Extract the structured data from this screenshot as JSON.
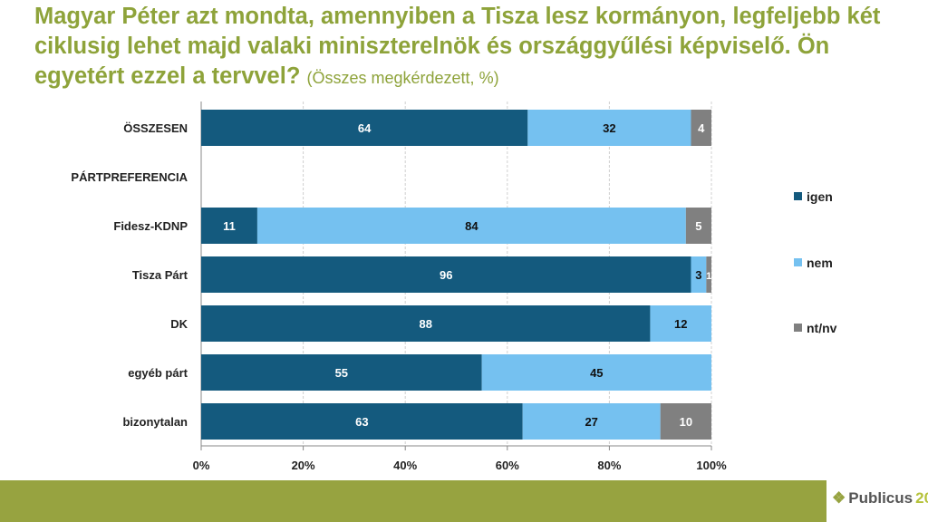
{
  "title": "Magyar Péter azt mondta, amennyiben a Tisza lesz kormányon, legfeljebb két ciklusig lehet majd valaki miniszterelnök és országgyűlési képviselő. Ön egyetért ezzel a tervvel?",
  "subtitle": "(Összes megkérdezett, %)",
  "logo": {
    "name": "Publicus",
    "number": "20"
  },
  "chart_data": {
    "type": "bar",
    "orientation": "horizontal",
    "stacked": true,
    "categories": [
      "ÖSSZESEN",
      "PÁRTPREFERENCIA",
      "Fidesz-KDNP",
      "Tisza Párt",
      "DK",
      "egyéb párt",
      "bizonytalan"
    ],
    "series": [
      {
        "name": "igen",
        "color": "#145a7e",
        "values": [
          64,
          null,
          11,
          96,
          88,
          55,
          63
        ]
      },
      {
        "name": "nem",
        "color": "#75c1f0",
        "values": [
          32,
          null,
          84,
          3,
          12,
          45,
          27
        ]
      },
      {
        "name": "nt/nv",
        "color": "#808080",
        "values": [
          4,
          null,
          5,
          1,
          null,
          null,
          10
        ]
      }
    ],
    "xlim": [
      0,
      100
    ],
    "xticks": [
      "0%",
      "20%",
      "40%",
      "60%",
      "80%",
      "100%"
    ],
    "legend": "right"
  }
}
